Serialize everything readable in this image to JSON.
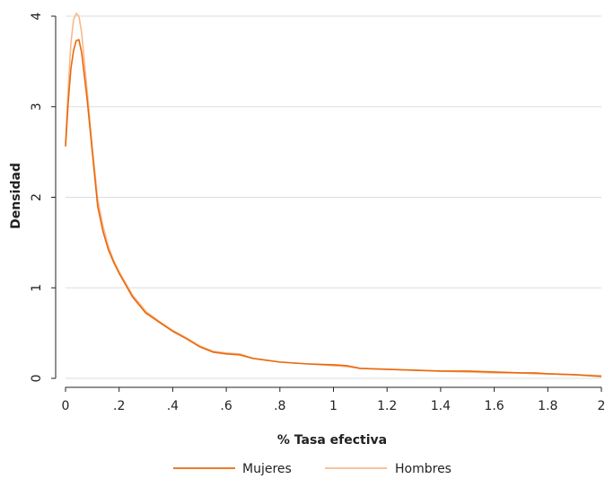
{
  "chart_data": {
    "type": "line",
    "title": "",
    "xlabel": "% Tasa efectiva",
    "ylabel": "Densidad",
    "xlim": [
      0,
      2
    ],
    "ylim": [
      0,
      4
    ],
    "grid": true,
    "legend_position": "bottom",
    "x_ticks": [
      {
        "value": 0,
        "label": "0"
      },
      {
        "value": 0.2,
        "label": ".2"
      },
      {
        "value": 0.4,
        "label": ".4"
      },
      {
        "value": 0.6,
        "label": ".6"
      },
      {
        "value": 0.8,
        "label": ".8"
      },
      {
        "value": 1,
        "label": "1"
      },
      {
        "value": 1.2,
        "label": "1.2"
      },
      {
        "value": 1.4,
        "label": "1.4"
      },
      {
        "value": 1.6,
        "label": "1.6"
      },
      {
        "value": 1.8,
        "label": "1.8"
      },
      {
        "value": 2,
        "label": "2"
      }
    ],
    "y_ticks": [
      {
        "value": 0,
        "label": "0"
      },
      {
        "value": 1,
        "label": "1"
      },
      {
        "value": 2,
        "label": "2"
      },
      {
        "value": 3,
        "label": "3"
      },
      {
        "value": 4,
        "label": "4"
      }
    ],
    "series": [
      {
        "name": "Mujeres",
        "color": "#e8690d",
        "x": [
          0,
          0.01,
          0.02,
          0.03,
          0.04,
          0.05,
          0.06,
          0.08,
          0.1,
          0.12,
          0.14,
          0.16,
          0.18,
          0.2,
          0.25,
          0.3,
          0.35,
          0.4,
          0.45,
          0.5,
          0.55,
          0.6,
          0.65,
          0.7,
          0.8,
          0.9,
          1.0,
          1.05,
          1.1,
          1.2,
          1.3,
          1.4,
          1.5,
          1.6,
          1.7,
          1.75,
          1.8,
          1.9,
          2.0
        ],
        "y": [
          2.56,
          3.05,
          3.42,
          3.62,
          3.73,
          3.74,
          3.6,
          3.1,
          2.5,
          1.9,
          1.62,
          1.42,
          1.28,
          1.16,
          0.9,
          0.72,
          0.62,
          0.52,
          0.44,
          0.35,
          0.29,
          0.27,
          0.26,
          0.22,
          0.18,
          0.16,
          0.15,
          0.14,
          0.11,
          0.1,
          0.09,
          0.08,
          0.08,
          0.07,
          0.06,
          0.06,
          0.05,
          0.04,
          0.02
        ]
      },
      {
        "name": "Hombres",
        "color": "#f7b98b",
        "x": [
          0,
          0.01,
          0.02,
          0.03,
          0.04,
          0.05,
          0.06,
          0.08,
          0.1,
          0.12,
          0.14,
          0.16,
          0.18,
          0.2,
          0.25,
          0.3,
          0.35,
          0.4,
          0.45,
          0.5,
          0.55,
          0.6,
          0.65,
          0.7,
          0.8,
          0.9,
          1.0,
          1.05,
          1.1,
          1.2,
          1.3,
          1.4,
          1.5,
          1.6,
          1.7,
          1.75,
          1.8,
          1.9,
          2.0
        ],
        "y": [
          2.6,
          3.2,
          3.7,
          3.96,
          4.03,
          4.0,
          3.82,
          3.2,
          2.55,
          1.98,
          1.68,
          1.46,
          1.3,
          1.18,
          0.92,
          0.74,
          0.63,
          0.53,
          0.45,
          0.36,
          0.3,
          0.28,
          0.27,
          0.22,
          0.18,
          0.16,
          0.14,
          0.13,
          0.11,
          0.1,
          0.09,
          0.08,
          0.07,
          0.06,
          0.06,
          0.05,
          0.05,
          0.04,
          0.03
        ]
      }
    ]
  },
  "colors": {
    "grid": "#dddddd",
    "axis": "#222222",
    "background": "#ffffff"
  }
}
